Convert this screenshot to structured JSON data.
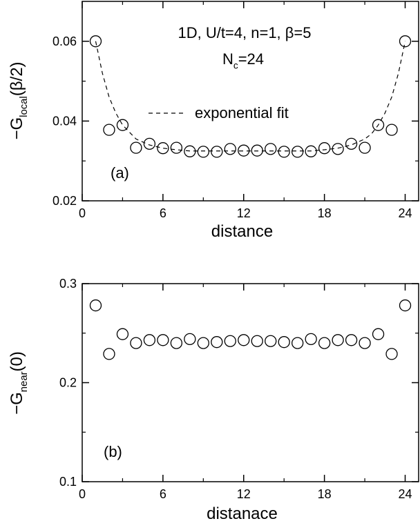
{
  "chart_data": [
    {
      "type": "scatter",
      "annotations": [
        [
          "1D, U/t=4, n=1, β=5"
        ],
        [
          "N",
          "c",
          "=24"
        ]
      ],
      "panel_label": "(a)",
      "x_label": "distance",
      "y_label": [
        "−G",
        "local",
        "(β/2)"
      ],
      "xlim": [
        0,
        25
      ],
      "xticks": [
        0,
        6,
        12,
        18,
        24
      ],
      "xminorticks": [
        3,
        9,
        15,
        21
      ],
      "ylim": [
        0.02,
        0.07
      ],
      "yticks": [
        0.02,
        0.04,
        0.06
      ],
      "yminorticks": [
        0.03,
        0.05
      ],
      "series": [
        {
          "marker": "open-circle",
          "color": "#000000",
          "x": [
            1,
            2,
            3,
            4,
            5,
            6,
            7,
            8,
            9,
            10,
            11,
            12,
            13,
            14,
            15,
            16,
            17,
            18,
            19,
            20,
            21,
            22,
            23,
            24
          ],
          "values": [
            0.06,
            0.0378,
            0.039,
            0.0333,
            0.0343,
            0.0332,
            0.0333,
            0.0324,
            0.0323,
            0.0323,
            0.033,
            0.0326,
            0.0326,
            0.033,
            0.0323,
            0.0323,
            0.0324,
            0.0332,
            0.033,
            0.0343,
            0.0333,
            0.039,
            0.0378,
            0.06
          ]
        },
        {
          "name": "exponential fit",
          "line_style": "dashed",
          "color": "#000000",
          "x": [
            1,
            1.5,
            2,
            2.5,
            3,
            4,
            5,
            6,
            7,
            8,
            10,
            12,
            13,
            15,
            17,
            18,
            19,
            20,
            21,
            21.5,
            22,
            22.5,
            23,
            23.5,
            24
          ],
          "values": [
            0.06,
            0.052,
            0.046,
            0.042,
            0.039,
            0.0355,
            0.034,
            0.0332,
            0.0328,
            0.0325,
            0.0325,
            0.0325,
            0.0325,
            0.0325,
            0.0325,
            0.0328,
            0.0332,
            0.034,
            0.0355,
            0.0368,
            0.039,
            0.042,
            0.046,
            0.052,
            0.06
          ]
        }
      ]
    },
    {
      "type": "scatter",
      "panel_label": "(b)",
      "x_label": "distanace",
      "y_label": [
        "−G",
        "near",
        "(0)"
      ],
      "xlim": [
        0,
        25
      ],
      "xticks": [
        0,
        6,
        12,
        18,
        24
      ],
      "xminorticks": [
        3,
        9,
        15,
        21
      ],
      "ylim": [
        0.1,
        0.3
      ],
      "yticks": [
        0.1,
        0.2,
        0.3
      ],
      "yminorticks": [
        0.15,
        0.25
      ],
      "series": [
        {
          "marker": "open-circle",
          "color": "#000000",
          "x": [
            1,
            2,
            3,
            4,
            5,
            6,
            7,
            8,
            9,
            10,
            11,
            12,
            13,
            14,
            15,
            16,
            17,
            18,
            19,
            20,
            21,
            22,
            23,
            24
          ],
          "values": [
            0.278,
            0.229,
            0.249,
            0.24,
            0.243,
            0.243,
            0.24,
            0.244,
            0.24,
            0.241,
            0.242,
            0.243,
            0.242,
            0.242,
            0.241,
            0.24,
            0.244,
            0.24,
            0.243,
            0.243,
            0.24,
            0.249,
            0.229,
            0.278
          ]
        }
      ]
    }
  ]
}
